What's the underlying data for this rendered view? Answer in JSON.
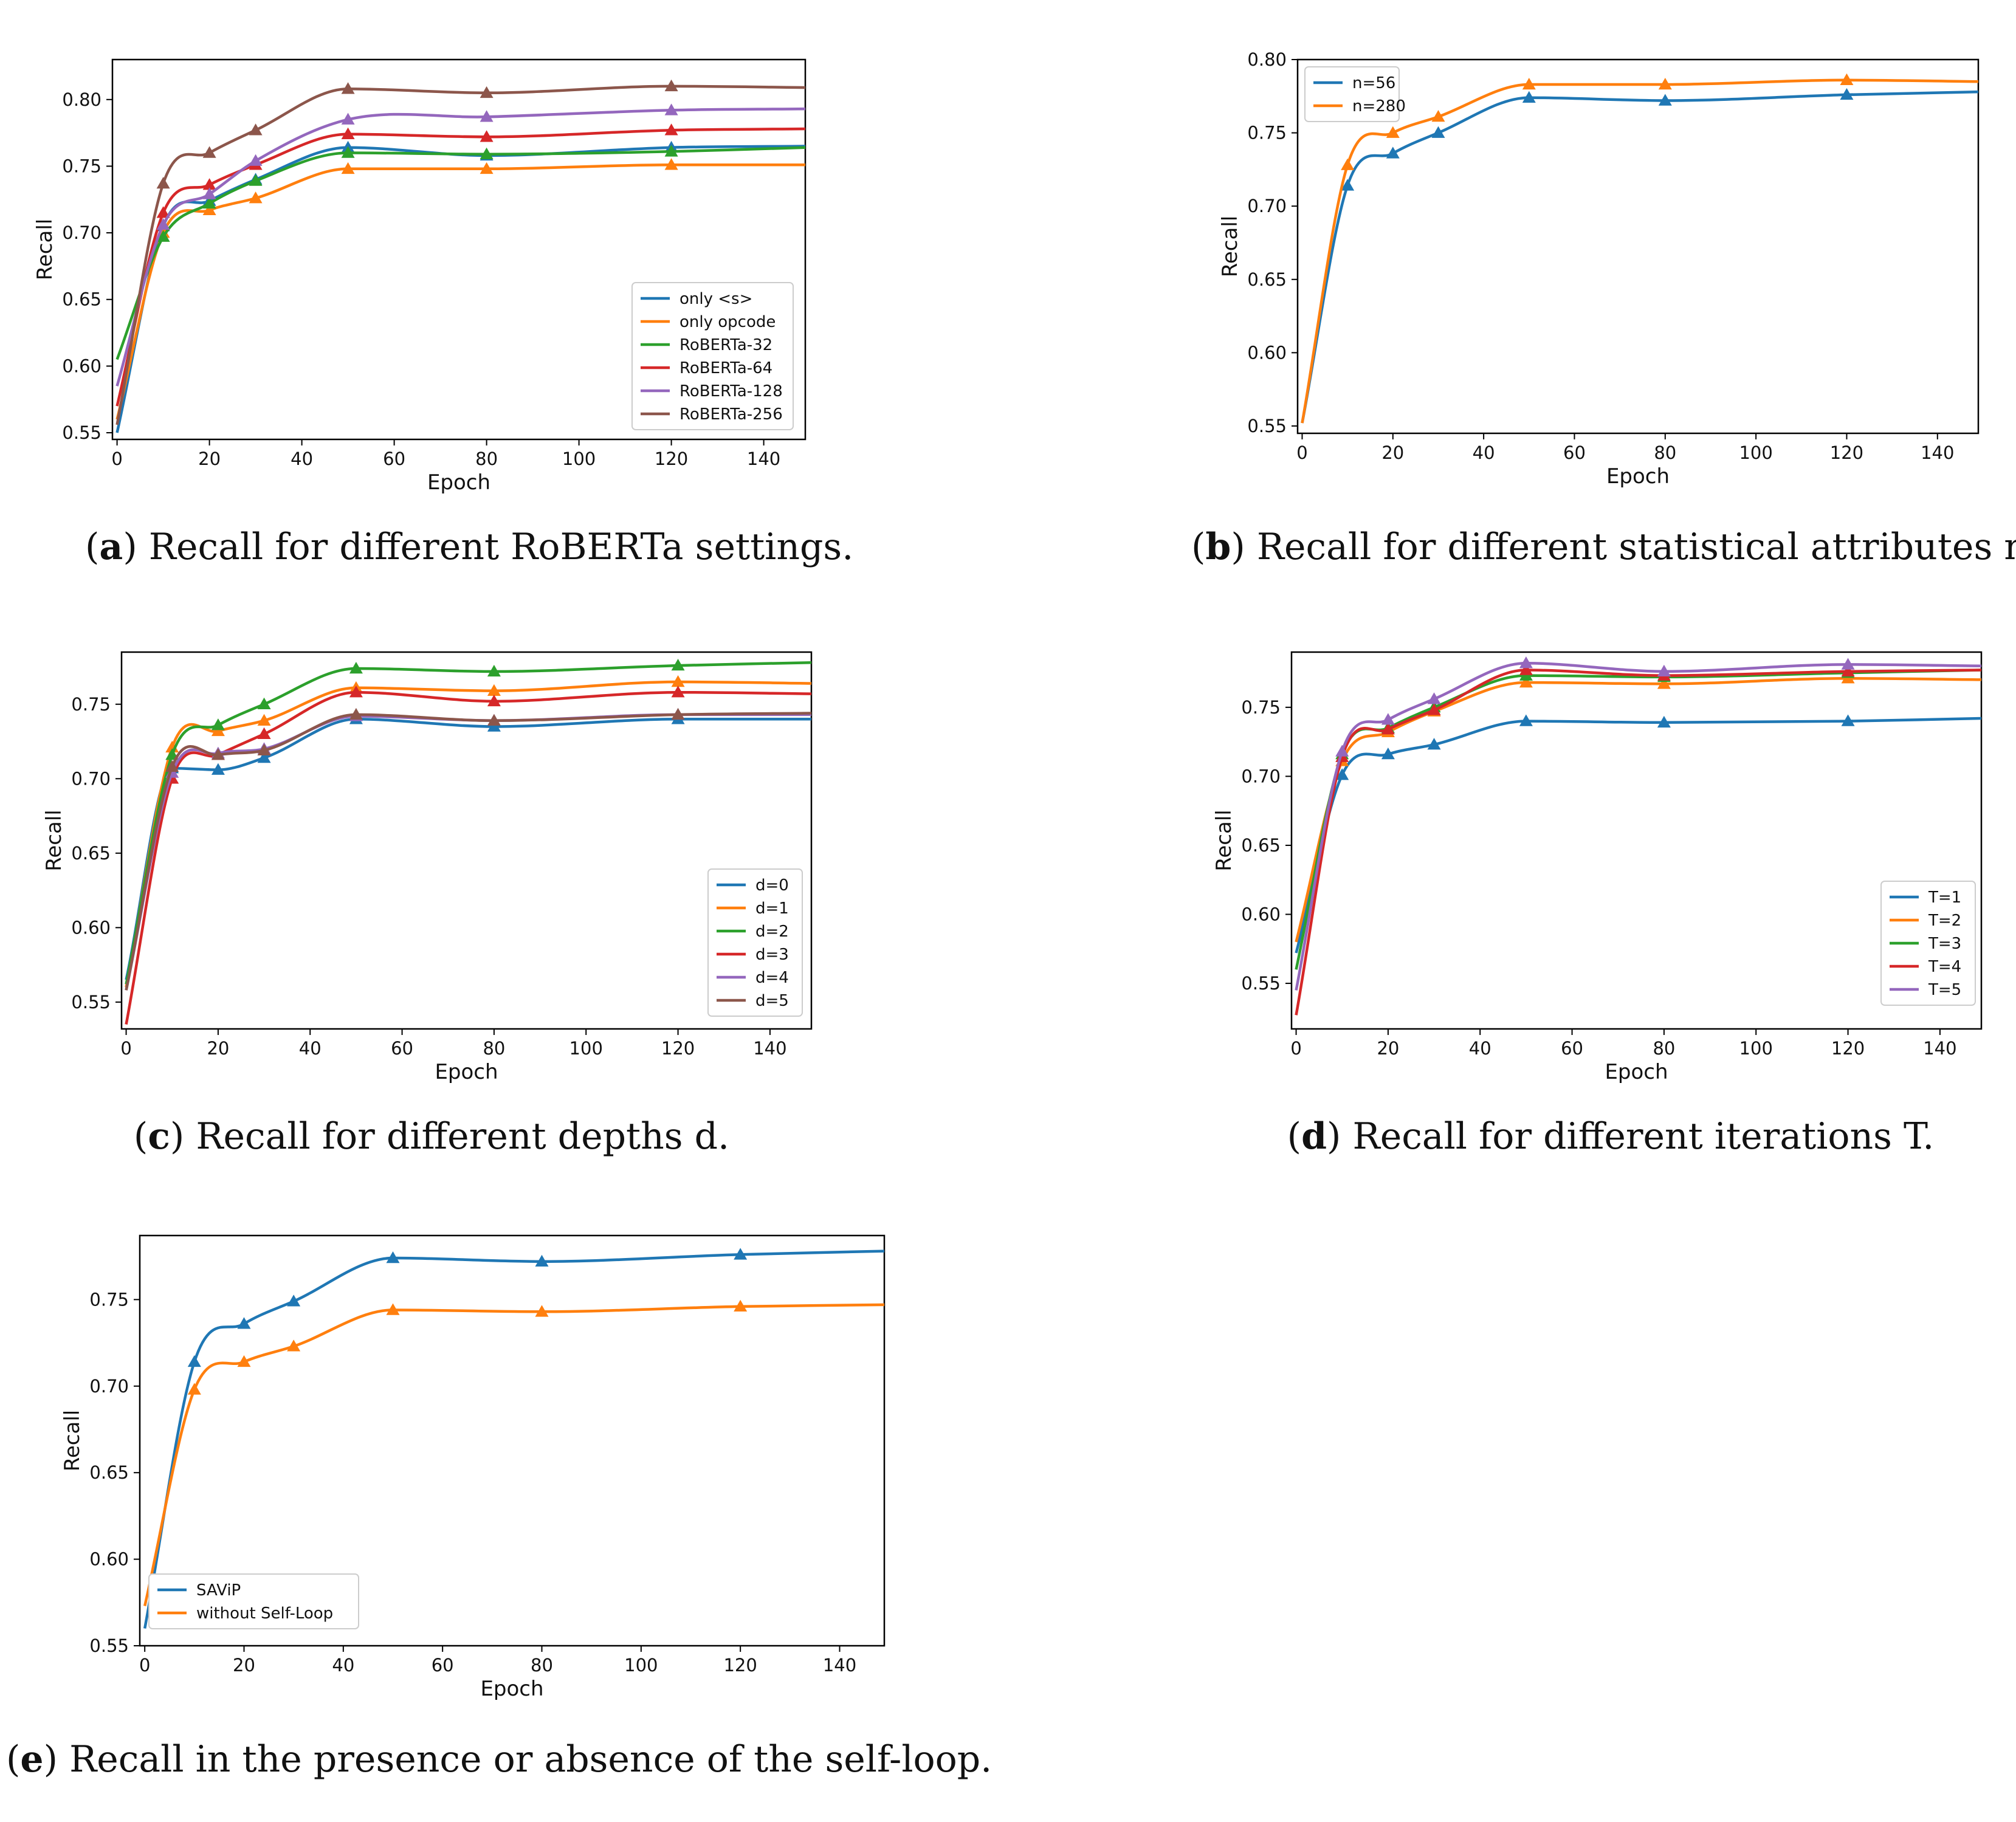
{
  "colors": {
    "c0": "#1f77b4",
    "c1": "#ff7f0e",
    "c2": "#2ca02c",
    "c3": "#d62728",
    "c4": "#9467bd",
    "c5": "#8c564b"
  },
  "captions": [
    {
      "letter": "a",
      "text": "Recall for different RoBERTa settings."
    },
    {
      "letter": "b",
      "text": "Recall for different statistical attributes n."
    },
    {
      "letter": "c",
      "text": "Recall for different depths d."
    },
    {
      "letter": "d",
      "text": "Recall for different iterations T."
    },
    {
      "letter": "e",
      "text": "Recall in the presence or absence of the self-loop."
    }
  ],
  "chart_data": [
    {
      "id": "a",
      "type": "line",
      "title": "",
      "xlabel": "Epoch",
      "ylabel": "Recall",
      "xlim": [
        -1,
        149
      ],
      "ylim": [
        0.545,
        0.83
      ],
      "xticks": [
        0,
        20,
        40,
        60,
        80,
        100,
        120,
        140
      ],
      "yticks": [
        0.55,
        0.6,
        0.65,
        0.7,
        0.75,
        0.8
      ],
      "ytick_labels": [
        "0.55",
        "0.60",
        "0.65",
        "0.70",
        "0.75",
        "0.80"
      ],
      "legend_loc": "lower-right",
      "x": [
        0,
        10,
        20,
        30,
        50,
        80,
        120,
        149
      ],
      "series": [
        {
          "name": "only <s>",
          "color": "#1f77b4",
          "values": [
            0.55,
            0.705,
            0.724,
            0.74,
            0.764,
            0.758,
            0.764,
            0.765
          ]
        },
        {
          "name": "only opcode",
          "color": "#ff7f0e",
          "values": [
            0.56,
            0.7,
            0.717,
            0.726,
            0.748,
            0.748,
            0.751,
            0.751
          ]
        },
        {
          "name": "RoBERTa-32",
          "color": "#2ca02c",
          "values": [
            0.605,
            0.697,
            0.722,
            0.739,
            0.76,
            0.759,
            0.761,
            0.764
          ]
        },
        {
          "name": "RoBERTa-64",
          "color": "#d62728",
          "values": [
            0.57,
            0.715,
            0.736,
            0.751,
            0.774,
            0.772,
            0.777,
            0.778
          ]
        },
        {
          "name": "RoBERTa-128",
          "color": "#9467bd",
          "values": [
            0.585,
            0.706,
            0.729,
            0.754,
            0.785,
            0.787,
            0.792,
            0.793
          ]
        },
        {
          "name": "RoBERTa-256",
          "color": "#8c564b",
          "values": [
            0.556,
            0.737,
            0.76,
            0.777,
            0.808,
            0.805,
            0.81,
            0.809
          ]
        }
      ]
    },
    {
      "id": "b",
      "type": "line",
      "title": "",
      "xlabel": "Epoch",
      "ylabel": "Recall",
      "xlim": [
        -1,
        149
      ],
      "ylim": [
        0.545,
        0.8
      ],
      "xticks": [
        0,
        20,
        40,
        60,
        80,
        100,
        120,
        140
      ],
      "yticks": [
        0.55,
        0.6,
        0.65,
        0.7,
        0.75,
        0.8
      ],
      "ytick_labels": [
        "0.55",
        "0.60",
        "0.65",
        "0.70",
        "0.75",
        "0.80"
      ],
      "legend_loc": "upper-left",
      "x": [
        0,
        10,
        20,
        30,
        50,
        80,
        120,
        149
      ],
      "series": [
        {
          "name": "n=56",
          "color": "#1f77b4",
          "values": [
            0.552,
            0.714,
            0.736,
            0.75,
            0.774,
            0.772,
            0.776,
            0.778
          ]
        },
        {
          "name": "n=280",
          "color": "#ff7f0e",
          "values": [
            0.552,
            0.728,
            0.75,
            0.761,
            0.783,
            0.783,
            0.786,
            0.785
          ]
        }
      ]
    },
    {
      "id": "c",
      "type": "line",
      "title": "",
      "xlabel": "Epoch",
      "ylabel": "Recall",
      "xlim": [
        -1,
        149
      ],
      "ylim": [
        0.532,
        0.785
      ],
      "xticks": [
        0,
        20,
        40,
        60,
        80,
        100,
        120,
        140
      ],
      "yticks": [
        0.55,
        0.6,
        0.65,
        0.7,
        0.75
      ],
      "ytick_labels": [
        "0.55",
        "0.60",
        "0.65",
        "0.70",
        "0.75"
      ],
      "legend_loc": "lower-right",
      "x": [
        0,
        10,
        20,
        30,
        50,
        80,
        120,
        149
      ],
      "series": [
        {
          "name": "d=0",
          "color": "#1f77b4",
          "values": [
            0.565,
            0.707,
            0.706,
            0.714,
            0.74,
            0.735,
            0.74,
            0.74
          ]
        },
        {
          "name": "d=1",
          "color": "#ff7f0e",
          "values": [
            0.56,
            0.721,
            0.732,
            0.739,
            0.761,
            0.759,
            0.765,
            0.764
          ]
        },
        {
          "name": "d=2",
          "color": "#2ca02c",
          "values": [
            0.562,
            0.716,
            0.736,
            0.75,
            0.774,
            0.772,
            0.776,
            0.778
          ]
        },
        {
          "name": "d=3",
          "color": "#d62728",
          "values": [
            0.535,
            0.7,
            0.716,
            0.73,
            0.758,
            0.752,
            0.758,
            0.757
          ]
        },
        {
          "name": "d=4",
          "color": "#9467bd",
          "values": [
            0.558,
            0.704,
            0.717,
            0.72,
            0.742,
            0.739,
            0.743,
            0.743
          ]
        },
        {
          "name": "d=5",
          "color": "#8c564b",
          "values": [
            0.558,
            0.708,
            0.716,
            0.719,
            0.743,
            0.739,
            0.743,
            0.744
          ]
        }
      ]
    },
    {
      "id": "d",
      "type": "line",
      "title": "",
      "xlabel": "Epoch",
      "ylabel": "Recall",
      "xlim": [
        -1,
        149
      ],
      "ylim": [
        0.517,
        0.79
      ],
      "xticks": [
        0,
        20,
        40,
        60,
        80,
        100,
        120,
        140
      ],
      "yticks": [
        0.55,
        0.6,
        0.65,
        0.7,
        0.75
      ],
      "ytick_labels": [
        "0.55",
        "0.60",
        "0.65",
        "0.70",
        "0.75"
      ],
      "legend_loc": "lower-right",
      "x": [
        0,
        10,
        20,
        30,
        50,
        80,
        120,
        149
      ],
      "series": [
        {
          "name": "T=1",
          "color": "#1f77b4",
          "values": [
            0.572,
            0.701,
            0.716,
            0.723,
            0.74,
            0.739,
            0.74,
            0.742
          ]
        },
        {
          "name": "T=2",
          "color": "#ff7f0e",
          "values": [
            0.58,
            0.711,
            0.732,
            0.747,
            0.768,
            0.767,
            0.771,
            0.77
          ]
        },
        {
          "name": "T=3",
          "color": "#2ca02c",
          "values": [
            0.56,
            0.716,
            0.735,
            0.75,
            0.773,
            0.772,
            0.775,
            0.777
          ]
        },
        {
          "name": "T=4",
          "color": "#d62728",
          "values": [
            0.527,
            0.714,
            0.734,
            0.748,
            0.777,
            0.773,
            0.776,
            0.777
          ]
        },
        {
          "name": "T=5",
          "color": "#9467bd",
          "values": [
            0.545,
            0.718,
            0.741,
            0.756,
            0.782,
            0.776,
            0.781,
            0.78
          ]
        }
      ]
    },
    {
      "id": "e",
      "type": "line",
      "title": "",
      "xlabel": "Epoch",
      "ylabel": "Recall",
      "xlim": [
        -1,
        149
      ],
      "ylim": [
        0.55,
        0.787
      ],
      "xticks": [
        0,
        20,
        40,
        60,
        80,
        100,
        120,
        140
      ],
      "yticks": [
        0.55,
        0.6,
        0.65,
        0.7,
        0.75
      ],
      "ytick_labels": [
        "0.55",
        "0.60",
        "0.65",
        "0.70",
        "0.75"
      ],
      "legend_loc": "lower-left",
      "x": [
        0,
        10,
        20,
        30,
        50,
        80,
        120,
        149
      ],
      "series": [
        {
          "name": "SAViP",
          "color": "#1f77b4",
          "values": [
            0.56,
            0.714,
            0.736,
            0.749,
            0.774,
            0.772,
            0.776,
            0.778
          ]
        },
        {
          "name": "without Self-Loop",
          "color": "#ff7f0e",
          "values": [
            0.573,
            0.698,
            0.714,
            0.723,
            0.744,
            0.743,
            0.746,
            0.747
          ]
        }
      ]
    }
  ]
}
